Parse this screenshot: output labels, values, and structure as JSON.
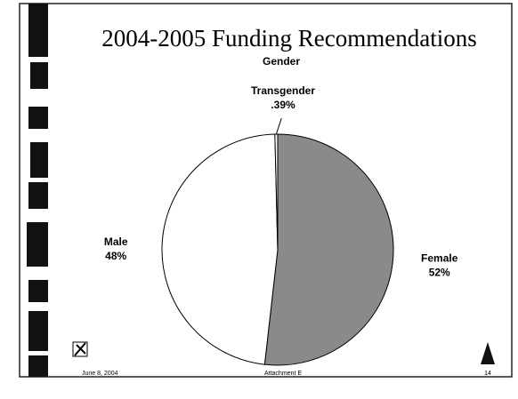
{
  "chart_data": {
    "type": "pie",
    "title": "2004-2005 Funding Recommendations",
    "subtitle": "Gender",
    "categories": [
      "Female",
      "Male",
      "Transgender"
    ],
    "values": [
      52,
      48,
      0.39
    ],
    "value_labels": [
      "52%",
      "48%",
      ".39%"
    ],
    "colors": [
      "#8a8a8a",
      "#ffffff",
      "#ffffff"
    ]
  },
  "footer": {
    "date": "June 8, 2004",
    "attachment": "Attachment E",
    "page": "14"
  }
}
